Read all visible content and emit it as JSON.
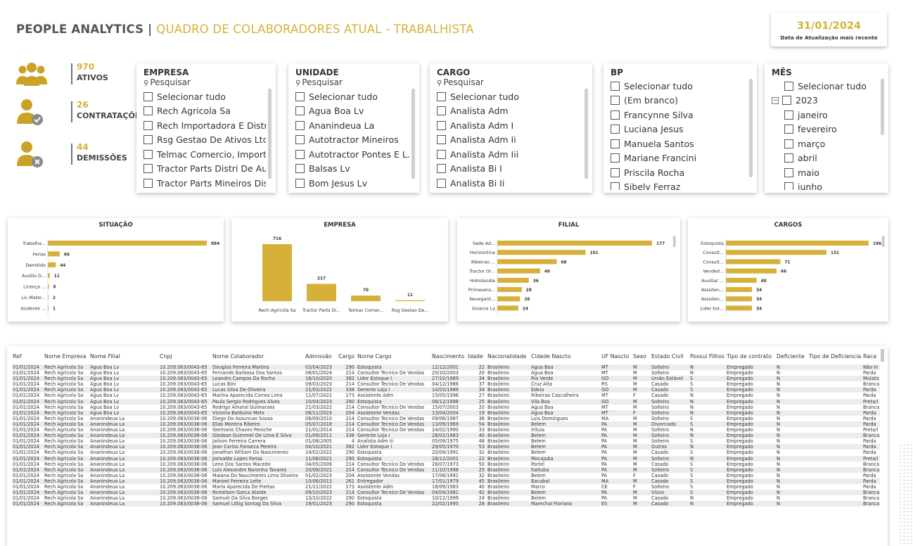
{
  "header": {
    "title_main": "PEOPLE ANALYTICS |",
    "title_sub": "QUADRO DE COLABORADORES ATUAL - TRABALHISTA",
    "update_date": "31/01/2024",
    "update_label": "Data de Atualização mais recente"
  },
  "colors": {
    "accent": "#d6b13a",
    "icon": "#c9a227",
    "badge_bg": "#8a8a8a"
  },
  "kpis": [
    {
      "value": "970",
      "label": "ATIVOS",
      "icon": "users-group-icon"
    },
    {
      "value": "26",
      "label": "CONTRATAÇÕES",
      "icon": "user-check-icon"
    },
    {
      "value": "44",
      "label": "DEMISSÕES",
      "icon": "user-remove-icon"
    }
  ],
  "slicers": {
    "empresa": {
      "title": "EMPRESA",
      "search": "Pesquisar",
      "items": [
        "Selecionar tudo",
        "Rech Agricola Sa",
        "Rech Importadora E Distr...",
        "Rsg Gestao De Ativos Ltda",
        "Telmac Comercio, Import...",
        "Tractor Parts Distri De Au...",
        "Tractor Parts Mineiros Dis..."
      ]
    },
    "unidade": {
      "title": "UNIDADE",
      "search": "Pesquisar",
      "items": [
        "Selecionar tudo",
        "Agua Boa Lv",
        "Ananindeua La",
        "Autotractor Mineiros",
        "Autotractor Pontes E L...",
        "Balsas Lv",
        "Bom Jesus Lv"
      ]
    },
    "cargo": {
      "title": "CARGO",
      "search": "Pesquisar",
      "items": [
        "Selecionar tudo",
        "Analista Adm",
        "Analista Adm I",
        "Analista Adm Ii",
        "Analista Adm Iii",
        "Analista Bi I",
        "Analista Bi Ii"
      ]
    },
    "bp": {
      "title": "BP",
      "items": [
        "Selecionar tudo",
        "(Em branco)",
        "Francynne Silva",
        "Luciana Jesus",
        "Manuela Santos",
        "Mariane Francini",
        "Priscila Rocha",
        "Sibelv Ferraz"
      ]
    },
    "mes": {
      "title": "MÊS",
      "select_all": "Selecionar tudo",
      "year": "2023",
      "expander": "−",
      "months": [
        "janeiro",
        "fevereiro",
        "março",
        "abril",
        "maio",
        "junho"
      ]
    }
  },
  "chart_data": [
    {
      "type": "bar",
      "orientation": "horizontal",
      "title": "SITUAÇÃO",
      "categories": [
        "Trabalha...",
        "Ferias",
        "Demitido",
        "Auxilio D...",
        "Licença ...",
        "Lic.Mater...",
        "Acidente ..."
      ],
      "values": [
        884,
        66,
        44,
        11,
        6,
        2,
        1
      ]
    },
    {
      "type": "bar",
      "orientation": "vertical",
      "title": "EMPRESA",
      "categories": [
        "Rech Agricola Sa",
        "Tractor Parts Di...",
        "Telmac Comer...",
        "Rsg Gestao De..."
      ],
      "values": [
        716,
        217,
        70,
        11
      ]
    },
    {
      "type": "bar",
      "orientation": "horizontal",
      "title": "FILIAL",
      "categories": [
        "Sede Ad...",
        "Horizontina",
        "Ribeirao ...",
        "Tractor Or...",
        "Hidrolandia",
        "Primavera...",
        "Navegant...",
        "Goiania La"
      ],
      "values": [
        177,
        101,
        68,
        49,
        36,
        28,
        26,
        24
      ]
    },
    {
      "type": "bar",
      "orientation": "horizontal",
      "title": "CARGOS",
      "categories": [
        "Estoquista",
        "Consult...",
        "Consult...",
        "Vended...",
        "Auxiliar ...",
        "Assisten...",
        "Assisten...",
        "Lider Est..."
      ],
      "values": [
        186,
        131,
        71,
        66,
        40,
        34,
        34,
        34
      ]
    }
  ],
  "table": {
    "columns": [
      "Ref",
      "Nome Empresa",
      "Nome Filial",
      "Cnpj",
      "Nome Colaborador",
      "Admissão",
      "Cargo",
      "Nome Cargo",
      "Nascimento",
      "Idade",
      "Nacionalidade",
      "Cidade Nascto",
      "UF Nascto",
      "Sexo",
      "Estado Civil",
      "Possui Filhos",
      "Tipo de contrato",
      "Deficiente",
      "Tipo de Deficiencia",
      "Raca"
    ],
    "rows": [
      [
        "01/01/2024",
        "Rech Agricola Sa",
        "Agua Boa Lv",
        "10.209.063/0043-65",
        "Douglas Ferreira Martins",
        "03/04/2023",
        "290",
        "Estoquista",
        "12/12/2001",
        "22",
        "Brasileiro",
        "Agua Boa",
        "MT",
        "M",
        "Solteiro",
        "N",
        "Empregado",
        "N",
        "",
        "Não In"
      ],
      [
        "01/01/2024",
        "Rech Agricola Sa",
        "Agua Boa Lv",
        "10.209.063/0043-65",
        "Fernando Barbosa Dos Santos",
        "08/01/2024",
        "214",
        "Consultor Tecnico De Vendas",
        "20/10/2003",
        "20",
        "Brasileiro",
        "Agua Boa",
        "MT",
        "M",
        "Solteiro",
        "N",
        "Empregado",
        "N",
        "",
        "Parda"
      ],
      [
        "01/01/2024",
        "Rech Agricola Sa",
        "Agua Boa Lv",
        "10.209.063/0043-65",
        "Leandro Campos Da Rocha",
        "16/10/2020",
        "382",
        "Lider Estoque I",
        "27/10/1989",
        "34",
        "Brasileiro",
        "Rio Verde",
        "GO",
        "M",
        "União Estável",
        "S",
        "Empregado",
        "N",
        "",
        "Mulato"
      ],
      [
        "01/01/2024",
        "Rech Agricola Sa",
        "Agua Boa Lv",
        "10.209.063/0043-65",
        "Lucas Bini",
        "09/03/2023",
        "214",
        "Consultor Tecnico De Vendas",
        "04/12/1986",
        "37",
        "Brasileiro",
        "Cruz Alta",
        "RS",
        "M",
        "Casado",
        "S",
        "Empregado",
        "N",
        "",
        "Branca"
      ],
      [
        "01/01/2024",
        "Rech Agricola Sa",
        "Agua Boa Lv",
        "10.209.063/0043-65",
        "Lucas Silva De Oliveira",
        "21/03/2022",
        "338",
        "Gerente Loja I",
        "14/03/1989",
        "34",
        "Brasileiro",
        "Edeia",
        "GO",
        "M",
        "Casado",
        "S",
        "Empregado",
        "N",
        "",
        "Parda"
      ],
      [
        "01/01/2024",
        "Rech Agricola Sa",
        "Agua Boa Lv",
        "10.209.063/0043-65",
        "Marina Aparecida Correa Lima",
        "11/07/2022",
        "173",
        "Assistente Adm",
        "15/05/1996",
        "27",
        "Brasileiro",
        "Ribeirao Cascalheira",
        "MT",
        "F",
        "Casado",
        "N",
        "Empregado",
        "N",
        "",
        "Parda"
      ],
      [
        "01/01/2024",
        "Rech Agricola Sa",
        "Agua Boa Lv",
        "10.209.063/0043-65",
        "Paulo Sergio Rodrigues Alves",
        "10/04/2023",
        "290",
        "Estoquista",
        "08/12/1998",
        "25",
        "Brasileiro",
        "Vila Boa",
        "GO",
        "M",
        "Solteiro",
        "N",
        "Empregado",
        "N",
        "",
        "Preta/I"
      ],
      [
        "01/01/2024",
        "Rech Agricola Sa",
        "Agua Boa Lv",
        "10.209.063/0043-65",
        "Rodrigo Amaral Guimaraes",
        "21/03/2022",
        "214",
        "Consultor Tecnico De Vendas",
        "15/07/2003",
        "20",
        "Brasileiro",
        "Agua Boa",
        "MT",
        "M",
        "Solteiro",
        "N",
        "Empregado",
        "N",
        "",
        "Branca"
      ],
      [
        "01/01/2024",
        "Rech Agricola Sa",
        "Agua Boa Lv",
        "10.209.063/0043-65",
        "Victoria Balduino Melo",
        "06/11/2023",
        "204",
        "Assistente Vendas",
        "13/04/2004",
        "19",
        "Brasileiro",
        "Agua Boa",
        "MT",
        "F",
        "Solteiro",
        "N",
        "Empregado",
        "N",
        "",
        "Parda"
      ],
      [
        "01/01/2024",
        "Rech Agricola Sa",
        "Ananindeua La",
        "10.209.063/0038-06",
        "Diego De Assuncao Sousa",
        "08/09/2010",
        "214",
        "Consultor Tecnico De Vendas",
        "09/06/1987",
        "36",
        "Brasileiro",
        "Luis Domingues",
        "MA",
        "M",
        "Solteiro",
        "S",
        "Empregado",
        "N",
        "",
        "Parda"
      ],
      [
        "01/01/2024",
        "Rech Agricola Sa",
        "Ananindeua La",
        "10.209.063/0038-06",
        "Elias Moreira Ribeiro",
        "05/07/2018",
        "214",
        "Consultor Tecnico De Vendas",
        "13/09/1969",
        "54",
        "Brasileiro",
        "Belem",
        "PA",
        "M",
        "Divorciado",
        "S",
        "Empregado",
        "N",
        "",
        "Parda"
      ],
      [
        "01/01/2024",
        "Rech Agricola Sa",
        "Ananindeua La",
        "10.209.063/0038-06",
        "Germano Chaves Peniche",
        "21/01/2014",
        "214",
        "Consultor Tecnico De Vendas",
        "24/02/1990",
        "33",
        "Brasileiro",
        "Irituia",
        "PA",
        "M",
        "Solteiro",
        "N",
        "Empregado",
        "N",
        "",
        "Preta/I"
      ],
      [
        "01/01/2024",
        "Rech Agricola Sa",
        "Ananindeua La",
        "10.209.063/0038-06",
        "Gledson Guimmel De Lima E Silva",
        "01/09/2011",
        "338",
        "Gerente Loja I",
        "28/02/1983",
        "40",
        "Brasileiro",
        "Belem",
        "PA",
        "M",
        "Solteiro",
        "N",
        "Empregado",
        "N",
        "",
        "Branca"
      ],
      [
        "01/01/2024",
        "Rech Agricola Sa",
        "Ananindeua La",
        "10.209.063/0038-06",
        "Jailson Ferreira Carrera",
        "01/08/2005",
        "4",
        "Analista Adm Iii",
        "05/09/1975",
        "48",
        "Brasileiro",
        "Belem",
        "PA",
        "M",
        "Solteiro",
        "S",
        "Empregado",
        "N",
        "",
        "Parda"
      ],
      [
        "01/01/2024",
        "Rech Agricola Sa",
        "Ananindeua La",
        "10.209.063/0038-06",
        "Jean Carlos Fonseca Pereira",
        "04/10/2021",
        "382",
        "Lider Estoque I",
        "29/05/1970",
        "53",
        "Brasileiro",
        "Belem",
        "PA",
        "M",
        "Outros",
        "N",
        "Empregado",
        "N",
        "",
        "Parda"
      ],
      [
        "01/01/2024",
        "Rech Agricola Sa",
        "Ananindeua La",
        "10.209.063/0038-06",
        "Jonathan William Do Nascimento",
        "14/02/2022",
        "290",
        "Estoquista",
        "20/09/1991",
        "32",
        "Brasileiro",
        "Belem",
        "PA",
        "M",
        "Casado",
        "S",
        "Empregado",
        "N",
        "",
        "Parda"
      ],
      [
        "01/01/2024",
        "Rech Agricola Sa",
        "Ananindeua La",
        "10.209.063/0038-06",
        "Jorivaldo Lopes Farias",
        "11/08/2021",
        "290",
        "Estoquista",
        "28/12/2001",
        "22",
        "Brasileiro",
        "Mocajuba",
        "PA",
        "M",
        "Solteiro",
        "N",
        "Empregado",
        "N",
        "",
        "Preta/I"
      ],
      [
        "01/01/2024",
        "Rech Agricola Sa",
        "Ananindeua La",
        "10.209.063/0038-06",
        "Leno Dos Santos Macedo",
        "04/05/2009",
        "214",
        "Consultor Tecnico De Vendas",
        "28/07/1973",
        "50",
        "Brasileiro",
        "Portel",
        "PA",
        "M",
        "Casado",
        "S",
        "Empregado",
        "N",
        "",
        "Branca"
      ],
      [
        "01/01/2024",
        "Rech Agricola Sa",
        "Ananindeua La",
        "10.209.063/0038-06",
        "Luis Alexandre Noronha Tavares",
        "20/08/2021",
        "214",
        "Consultor Tecnico De Vendas",
        "11/10/1998",
        "25",
        "Brasileiro",
        "Itaituba",
        "PA",
        "M",
        "Solteiro",
        "S",
        "Empregado",
        "N",
        "",
        "Branca"
      ],
      [
        "01/01/2024",
        "Rech Agricola Sa",
        "Ananindeua La",
        "10.209.063/0038-06",
        "Maiana Do Nascimento Lima Oliveira",
        "01/02/2023",
        "204",
        "Assistente Vendas",
        "17/08/1991",
        "32",
        "Brasileiro",
        "Belem",
        "PA",
        "F",
        "Casado",
        "S",
        "Empregado",
        "N",
        "",
        "Parda"
      ],
      [
        "01/01/2024",
        "Rech Agricola Sa",
        "Ananindeua La",
        "10.209.063/0038-06",
        "Manoel Ferreira Leite",
        "10/06/2013",
        "261",
        "Entregador",
        "17/01/1979",
        "45",
        "Brasileiro",
        "Bacabal",
        "MA",
        "M",
        "Casado",
        "S",
        "Empregado",
        "N",
        "",
        "Parda"
      ],
      [
        "01/01/2024",
        "Rech Agricola Sa",
        "Ananindeua La",
        "10.209.063/0038-06",
        "Maria Aparecida De Freitas",
        "21/11/2022",
        "173",
        "Assistente Adm",
        "18/09/1983",
        "40",
        "Brasileiro",
        "Marco",
        "CE",
        "F",
        "Solteiro",
        "S",
        "Empregado",
        "N",
        "",
        "Parda"
      ],
      [
        "01/01/2024",
        "Rech Agricola Sa",
        "Ananindeua La",
        "10.209.063/0038-06",
        "Ronielson Garca Ataide",
        "09/10/2023",
        "214",
        "Consultor Tecnico De Vendas",
        "04/04/1981",
        "42",
        "Brasileiro",
        "Belem",
        "PA",
        "M",
        "Viúvo",
        "S",
        "Empregado",
        "N",
        "",
        "Branca"
      ],
      [
        "01/01/2024",
        "Rech Agricola Sa",
        "Ananindeua La",
        "10.209.063/0038-06",
        "Samuel Da Silva Borges",
        "13/10/2022",
        "290",
        "Estoquista",
        "10/12/1999",
        "24",
        "Brasileiro",
        "Belem",
        "PA",
        "M",
        "Casado",
        "N",
        "Empregado",
        "N",
        "",
        "Branca"
      ],
      [
        "01/01/2024",
        "Rech Agricola Sa",
        "Ananindeua La",
        "10.209.063/0038-06",
        "Samuel Littig Sontag Da Silva",
        "19/01/2023",
        "290",
        "Estoquista",
        "22/02/1995",
        "28",
        "Brasileiro",
        "Marechal Floriano",
        "ES",
        "M",
        "Casado",
        "N",
        "Empregado",
        "N",
        "",
        "Branca"
      ]
    ]
  }
}
